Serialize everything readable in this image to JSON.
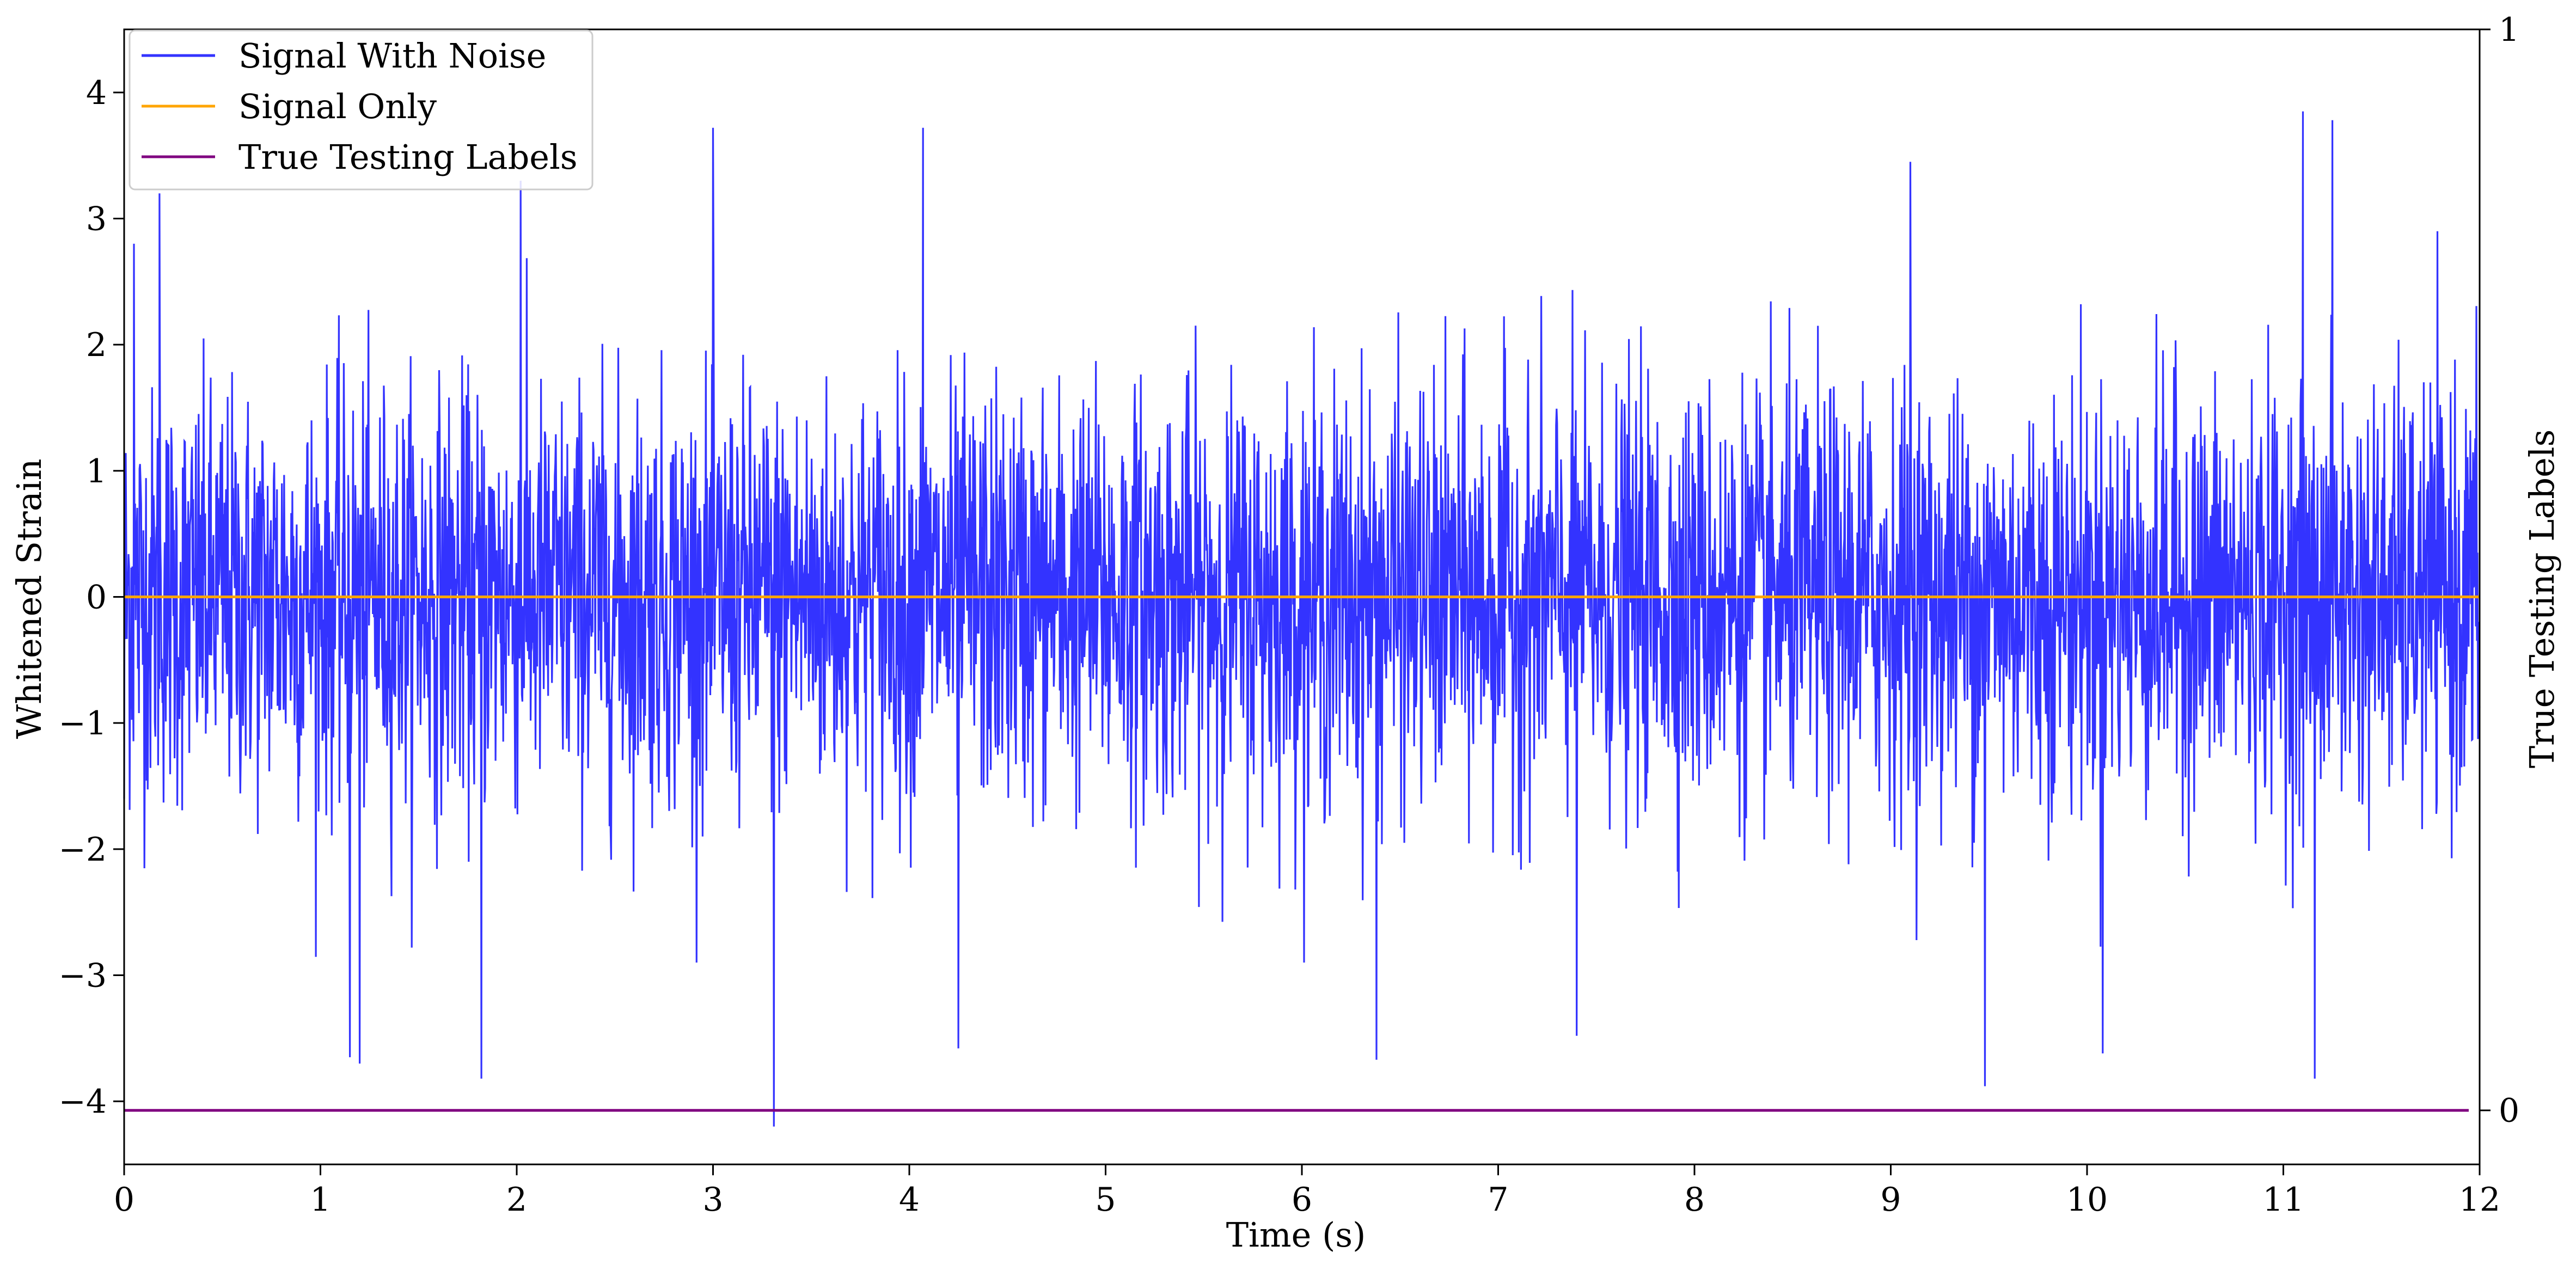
{
  "chart_data": {
    "type": "line",
    "xlabel": "Time (s)",
    "ylabel": "Whitened Strain",
    "y2label": "True Testing Labels",
    "xlim": [
      0,
      12
    ],
    "ylim": [
      -4.5,
      4.5
    ],
    "y2lim": [
      -0.05,
      1.0
    ],
    "xticks": [
      "0",
      "1",
      "2",
      "3",
      "4",
      "5",
      "6",
      "7",
      "8",
      "9",
      "10",
      "11",
      "12"
    ],
    "yticks": [
      "−4",
      "−3",
      "−2",
      "−1",
      "0",
      "1",
      "2",
      "3",
      "4"
    ],
    "y2ticks": [
      "0",
      "1"
    ],
    "grid": false,
    "legend_position": "upper-left",
    "series": [
      {
        "name": "Signal With Noise",
        "color": "#3333ff",
        "description_of_values": "dense noise, amplitude mostly within ±2",
        "x": [
          0,
          0.05,
          0.18,
          1.15,
          1.2,
          1.82,
          2.02,
          3.0,
          3.31,
          4.07,
          4.25,
          6.38,
          7.4,
          9.1,
          9.48,
          10.08,
          11.1,
          11.16,
          11.25
        ],
        "y": [
          -1.6,
          2.8,
          3.2,
          -3.65,
          -3.7,
          -3.82,
          3.3,
          3.72,
          -4.2,
          3.72,
          -3.58,
          -3.67,
          -3.48,
          3.45,
          -3.88,
          -3.62,
          3.85,
          -3.82,
          3.78
        ]
      },
      {
        "name": "Signal Only",
        "color": "#ffa500",
        "x": [
          0,
          12
        ],
        "y": [
          0,
          0
        ]
      },
      {
        "name": "True Testing Labels",
        "color": "#800080",
        "axis": "right",
        "x": [
          0,
          12
        ],
        "y": [
          0,
          0
        ]
      }
    ]
  }
}
